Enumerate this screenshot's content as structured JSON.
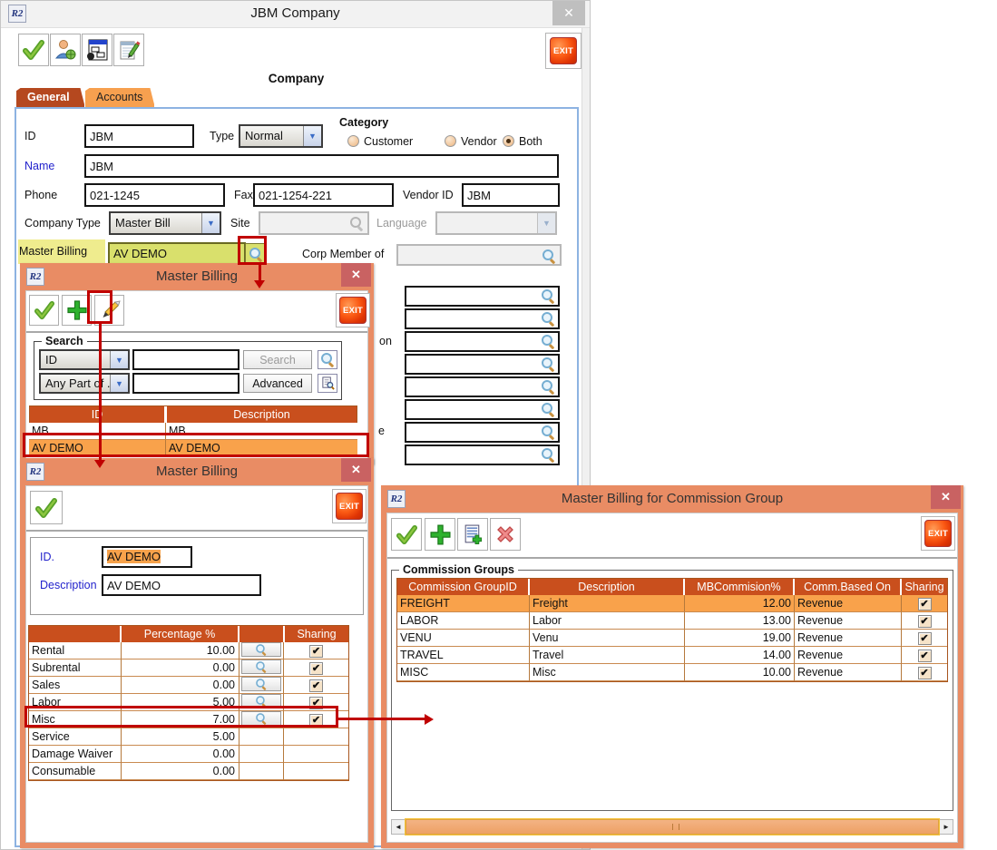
{
  "app_icon_text": "R2",
  "exit_label": "EXIT",
  "icons": {
    "close_glyph": "✕",
    "dropdown_arrow": "▼",
    "check_glyph": "✔",
    "scroll_left_glyph": "◄",
    "scroll_right_glyph": "►"
  },
  "colors": {
    "dialog_orange": "#e98c64",
    "table_header": "#c94f1d",
    "selected_row": "#f9a24b",
    "active_tab": "#b5481f",
    "inactive_tab": "#f7a04f",
    "highlight_yellow": "#efec8e",
    "highlight_field": "#d9e06c",
    "annotation_red": "#c00000"
  },
  "main_window": {
    "title": "JBM Company",
    "heading": "Company",
    "tabs": [
      {
        "label": "General"
      },
      {
        "label": "Accounts"
      }
    ],
    "fields": {
      "id_label": "ID",
      "id_value": "JBM",
      "type_label": "Type",
      "type_value": "Normal",
      "category_label": "Category",
      "category_options": [
        {
          "label": "Customer",
          "selected": false
        },
        {
          "label": "Vendor",
          "selected": false
        },
        {
          "label": "Both",
          "selected": true
        }
      ],
      "name_label": "Name",
      "name_value": "JBM",
      "phone_label": "Phone",
      "phone_value": "021-1245",
      "fax_label": "Fax",
      "fax_value": "021-1254-221",
      "vendor_id_label": "Vendor ID",
      "vendor_id_value": "JBM",
      "company_type_label": "Company Type",
      "company_type_value": "Master Bill",
      "site_label": "Site",
      "language_label": "Language",
      "master_billing_label": "Master Billing",
      "master_billing_value": "AV DEMO",
      "corp_member_label": "Corp Member of",
      "clipped_fragment_1": "on",
      "clipped_fragment_2": "e"
    },
    "lookup_field_count": 8
  },
  "search_dialog": {
    "title": "Master Billing",
    "search_group_label": "Search",
    "filter1_value": "ID",
    "filter2_value": "Any Part of ...",
    "search_button_label": "Search",
    "advanced_button_label": "Advanced",
    "table": {
      "columns": [
        "ID",
        "Description"
      ],
      "rows": [
        {
          "id": "MB",
          "description": "MB",
          "selected": false
        },
        {
          "id": "AV DEMO",
          "description": "AV DEMO",
          "selected": true
        }
      ]
    }
  },
  "edit_dialog": {
    "title": "Master Billing",
    "id_label": "ID.",
    "id_value": "AV DEMO",
    "description_label": "Description",
    "description_value": "AV DEMO",
    "table": {
      "columns": [
        "",
        "Percentage %",
        "",
        "Sharing"
      ],
      "rows": [
        {
          "name": "Rental",
          "pct": "10.00",
          "lookup": true,
          "sharing": true
        },
        {
          "name": "Subrental",
          "pct": "0.00",
          "lookup": true,
          "sharing": true
        },
        {
          "name": "Sales",
          "pct": "0.00",
          "lookup": true,
          "sharing": true
        },
        {
          "name": "Labor",
          "pct": "5.00",
          "lookup": true,
          "sharing": true
        },
        {
          "name": "Misc",
          "pct": "7.00",
          "lookup": true,
          "sharing": true,
          "highlighted": true
        },
        {
          "name": "Service",
          "pct": "5.00",
          "lookup": false,
          "sharing": false
        },
        {
          "name": "Damage Waiver",
          "pct": "0.00",
          "lookup": false,
          "sharing": false
        },
        {
          "name": "Consumable",
          "pct": "0.00",
          "lookup": false,
          "sharing": false
        }
      ]
    }
  },
  "commission_dialog": {
    "title": "Master Billing for Commission Group",
    "group_label": "Commission Groups",
    "table": {
      "columns": [
        "Commission GroupID",
        "Description",
        "MBCommision%",
        "Comm.Based On",
        "Sharing"
      ],
      "rows": [
        {
          "group_id": "FREIGHT",
          "description": "Freight",
          "pct": "12.00",
          "based_on": "Revenue",
          "sharing": true,
          "selected": true
        },
        {
          "group_id": "LABOR",
          "description": "Labor",
          "pct": "13.00",
          "based_on": "Revenue",
          "sharing": true,
          "selected": false
        },
        {
          "group_id": "VENU",
          "description": "Venu",
          "pct": "19.00",
          "based_on": "Revenue",
          "sharing": true,
          "selected": false
        },
        {
          "group_id": "TRAVEL",
          "description": "Travel",
          "pct": "14.00",
          "based_on": "Revenue",
          "sharing": true,
          "selected": false
        },
        {
          "group_id": "MISC",
          "description": "Misc",
          "pct": "10.00",
          "based_on": "Revenue",
          "sharing": true,
          "selected": false
        }
      ]
    }
  }
}
